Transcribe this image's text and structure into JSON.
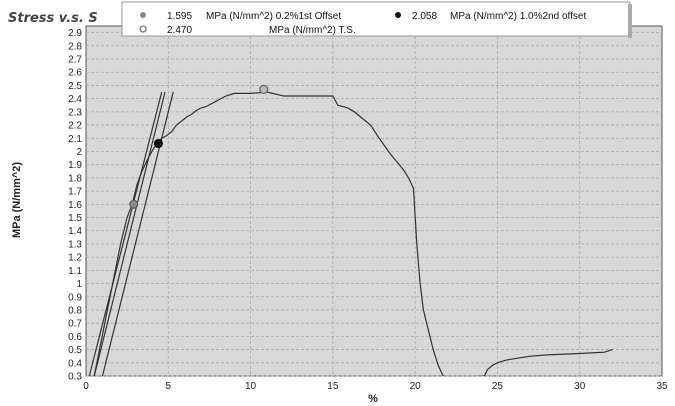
{
  "chart_data": {
    "type": "line",
    "title": "Stress v.s. S",
    "xlabel": "%",
    "ylabel": "MPa (N/mm^2)",
    "xlim": [
      0,
      35
    ],
    "ylim": [
      0.3,
      2.95
    ],
    "x_ticks": [
      0,
      5,
      10,
      15,
      20,
      25,
      30,
      35
    ],
    "y_ticks": [
      0.3,
      0.4,
      0.5,
      0.6,
      0.7,
      0.8,
      0.9,
      1,
      1.1,
      1.2,
      1.3,
      1.4,
      1.5,
      1.6,
      1.7,
      1.8,
      1.9,
      2,
      2.1,
      2.2,
      2.3,
      2.4,
      2.5,
      2.6,
      2.7,
      2.8,
      2.9
    ],
    "grid": true,
    "legend_placement": "top",
    "colors": {
      "plot_bg": "#d8d8d8",
      "line": "#333333",
      "grid": "#a8a8a8"
    },
    "legend": [
      {
        "value": "1.595",
        "text": "MPa (N/mm^2) 0.2%1st Offset",
        "marker": "gray-dot"
      },
      {
        "value": "2.058",
        "text": "MPa (N/mm^2) 1.0%2nd offset",
        "marker": "black-dot"
      },
      {
        "value": "2.470",
        "text": "MPa (N/mm^2) T.S.",
        "marker": "open-circle"
      }
    ],
    "series": [
      {
        "x": [
          0.5,
          0.9,
          1.3,
          1.7,
          2.1,
          2.5,
          2.8,
          3.1,
          3.4,
          3.7,
          4.0,
          4.3,
          4.6,
          4.9,
          5.2,
          5.5,
          5.8,
          6.1,
          6.4,
          6.7,
          7.0,
          7.3,
          7.6,
          7.9,
          8.2,
          8.5,
          9.0,
          10.0,
          11.0,
          12.0,
          13.0,
          14.0,
          15.0,
          15.3,
          15.9,
          16.3,
          16.8,
          17.3,
          17.7,
          18.1,
          18.5,
          18.9,
          19.3,
          19.6,
          19.9,
          20.1,
          20.3,
          20.5,
          20.8,
          21.1,
          21.4,
          21.7,
          21.9,
          24.2,
          24.4,
          24.7,
          25.0,
          25.5,
          26.0,
          27.0,
          28.0,
          30.0,
          31.5,
          32.0
        ],
        "y": [
          0.3,
          0.55,
          0.8,
          1.05,
          1.3,
          1.5,
          1.6,
          1.75,
          1.85,
          1.93,
          2.0,
          2.06,
          2.1,
          2.12,
          2.15,
          2.2,
          2.23,
          2.26,
          2.28,
          2.31,
          2.33,
          2.34,
          2.36,
          2.38,
          2.4,
          2.42,
          2.44,
          2.44,
          2.45,
          2.42,
          2.42,
          2.42,
          2.42,
          2.35,
          2.33,
          2.3,
          2.25,
          2.2,
          2.12,
          2.05,
          1.98,
          1.92,
          1.86,
          1.8,
          1.72,
          1.3,
          1.0,
          0.8,
          0.65,
          0.5,
          0.38,
          0.3,
          0.28,
          0.3,
          0.35,
          0.38,
          0.4,
          0.42,
          0.43,
          0.45,
          0.46,
          0.47,
          0.48,
          0.5
        ]
      }
    ],
    "offset_lines": [
      {
        "x": [
          0.2,
          4.6
        ],
        "y": [
          0.3,
          2.45
        ]
      },
      {
        "x": [
          0.5,
          4.8
        ],
        "y": [
          0.3,
          2.45
        ]
      },
      {
        "x": [
          1.0,
          5.3
        ],
        "y": [
          0.3,
          2.45
        ]
      }
    ],
    "markers": [
      {
        "x": 2.9,
        "y": 1.6,
        "style": "gray-dot"
      },
      {
        "x": 4.4,
        "y": 2.06,
        "style": "black-dot"
      },
      {
        "x": 10.8,
        "y": 2.47,
        "style": "open-circle"
      }
    ]
  }
}
